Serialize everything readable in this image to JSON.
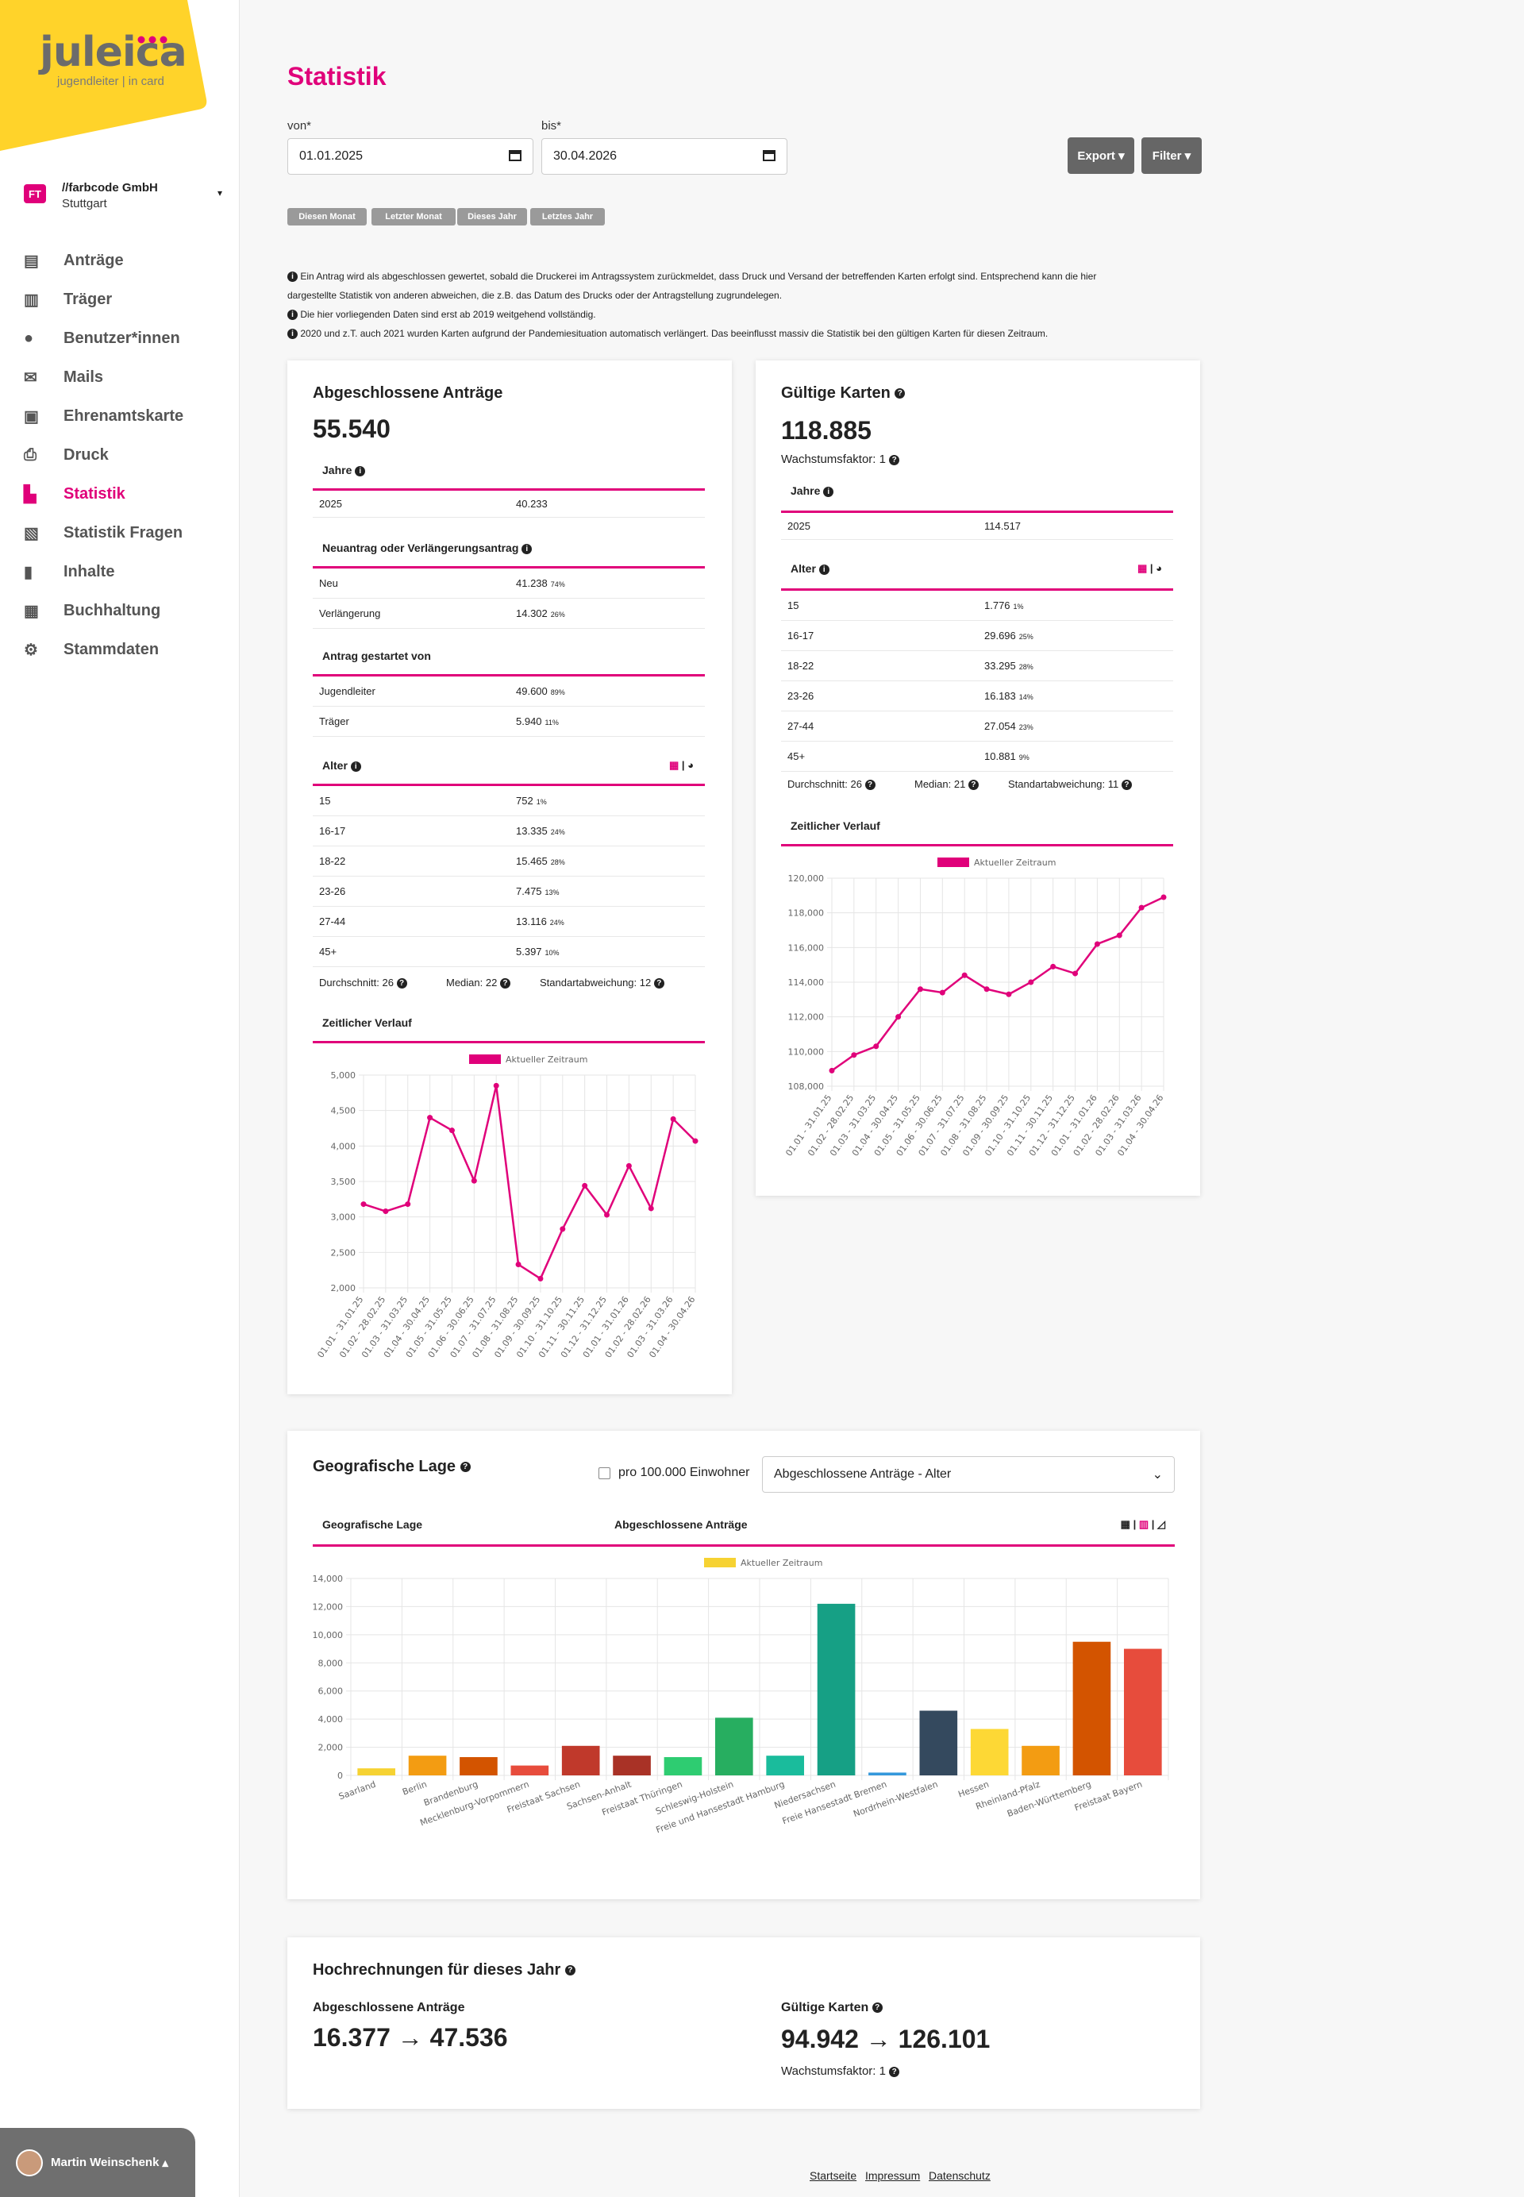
{
  "brand": {
    "name": "juleica",
    "tagline": "jugendleiter | in card"
  },
  "org": {
    "badge": "FT",
    "name": "//farbcode GmbH",
    "city": "Stuttgart"
  },
  "nav": [
    {
      "label": "Anträge",
      "icon": "id-card-icon"
    },
    {
      "label": "Träger",
      "icon": "building-icon"
    },
    {
      "label": "Benutzer*innen",
      "icon": "user-icon"
    },
    {
      "label": "Mails",
      "icon": "envelope-icon"
    },
    {
      "label": "Ehrenamtskarte",
      "icon": "card-icon"
    },
    {
      "label": "Druck",
      "icon": "printer-icon"
    },
    {
      "label": "Statistik",
      "icon": "chart-icon"
    },
    {
      "label": "Statistik Fragen",
      "icon": "clipboard-icon"
    },
    {
      "label": "Inhalte",
      "icon": "file-icon"
    },
    {
      "label": "Buchhaltung",
      "icon": "calculator-icon"
    },
    {
      "label": "Stammdaten",
      "icon": "gear-icon"
    }
  ],
  "user": {
    "name": "Martin Weinschenk"
  },
  "page": {
    "title": "Statistik",
    "from_label": "von*",
    "from_value": "01.01.2025",
    "to_label": "bis*",
    "to_value": "30.04.2026",
    "export": "Export",
    "filter": "Filter",
    "chips": [
      "Diesen Monat",
      "Letzter Monat",
      "Dieses Jahr",
      "Letztes Jahr"
    ],
    "notes": [
      "Ein Antrag wird als abgeschlossen gewertet, sobald die Druckerei im Antragssystem zurückmeldet, dass Druck und Versand der betreffenden Karten erfolgt sind. Entsprechend kann die hier",
      "dargestellte Statistik von anderen abweichen, die z.B. das Datum des Drucks oder der Antragstellung zugrundelegen.",
      "Die hier vorliegenden Daten sind erst ab 2019 weitgehend vollständig.",
      "2020 und z.T. auch 2021 wurden Karten aufgrund der Pandemiesituation automatisch verlängert. Das beeinflusst massiv die Statistik bei den gültigen Karten für diesen Zeitraum."
    ]
  },
  "applications": {
    "title": "Abgeschlossene Anträge",
    "total": "55.540",
    "years_head": "Jahre",
    "years": [
      {
        "k": "2025",
        "v": "40.233"
      }
    ],
    "type_head": "Neuantrag oder Verlängerungsantrag",
    "types": [
      {
        "k": "Neu",
        "v": "41.238",
        "p": "74%"
      },
      {
        "k": "Verlängerung",
        "v": "14.302",
        "p": "26%"
      }
    ],
    "start_head": "Antrag gestartet von",
    "starts": [
      {
        "k": "Jugendleiter",
        "v": "49.600",
        "p": "89%"
      },
      {
        "k": "Träger",
        "v": "5.940",
        "p": "11%"
      }
    ],
    "age_head": "Alter",
    "ages": [
      {
        "k": "15",
        "v": "752",
        "p": "1%"
      },
      {
        "k": "16-17",
        "v": "13.335",
        "p": "24%"
      },
      {
        "k": "18-22",
        "v": "15.465",
        "p": "28%"
      },
      {
        "k": "23-26",
        "v": "7.475",
        "p": "13%"
      },
      {
        "k": "27-44",
        "v": "13.116",
        "p": "24%"
      },
      {
        "k": "45+",
        "v": "5.397",
        "p": "10%"
      }
    ],
    "avg": "Durchschnitt: 26",
    "median": "Median: 22",
    "std": "Standartabweichung: 12",
    "timeline_head": "Zeitlicher Verlauf"
  },
  "cards": {
    "title": "Gültige Karten",
    "total": "118.885",
    "growth": "Wachstumsfaktor: 1",
    "years_head": "Jahre",
    "years": [
      {
        "k": "2025",
        "v": "114.517"
      }
    ],
    "age_head": "Alter",
    "ages": [
      {
        "k": "15",
        "v": "1.776",
        "p": "1%"
      },
      {
        "k": "16-17",
        "v": "29.696",
        "p": "25%"
      },
      {
        "k": "18-22",
        "v": "33.295",
        "p": "28%"
      },
      {
        "k": "23-26",
        "v": "16.183",
        "p": "14%"
      },
      {
        "k": "27-44",
        "v": "27.054",
        "p": "23%"
      },
      {
        "k": "45+",
        "v": "10.881",
        "p": "9%"
      }
    ],
    "avg": "Durchschnitt: 26",
    "median": "Median: 21",
    "std": "Standartabweichung: 11",
    "timeline_head": "Zeitlicher Verlauf"
  },
  "geo": {
    "title": "Geografische Lage",
    "per_capita": "pro 100.000 Einwohner",
    "select": "Abgeschlossene Anträge - Alter",
    "col1": "Geografische Lage",
    "col2": "Abgeschlossene Anträge"
  },
  "projection": {
    "title": "Hochrechnungen für dieses Jahr",
    "app_label": "Abgeschlossene Anträge",
    "app_value": "16.377 → 47.536",
    "card_label": "Gültige Karten",
    "card_value": "94.942 → 126.101",
    "card_growth": "Wachstumsfaktor: 1"
  },
  "footer": [
    "Startseite",
    "Impressum",
    "Datenschutz"
  ],
  "colors": {
    "accent": "#e0007a",
    "brand_yellow": "#ffd32a"
  },
  "chart_data": [
    {
      "type": "line",
      "legend": [
        "Aktueller Zeitraum"
      ],
      "categories": [
        "01.01 - 31.01.25",
        "01.02 - 28.02.25",
        "01.03 - 31.03.25",
        "01.04 - 30.04.25",
        "01.05 - 31.05.25",
        "01.06 - 30.06.25",
        "01.07 - 31.07.25",
        "01.08 - 31.08.25",
        "01.09 - 30.09.25",
        "01.10 - 31.10.25",
        "01.11 - 30.11.25",
        "01.12 - 31.12.25",
        "01.01 - 31.01.26",
        "01.02 - 28.02.26",
        "01.03 - 31.03.26",
        "01.04 - 30.04.26"
      ],
      "values": [
        3180,
        3080,
        3180,
        4400,
        4220,
        3510,
        4850,
        2330,
        2130,
        2830,
        3440,
        3030,
        3720,
        3120,
        4380,
        4070
      ],
      "ylim": [
        2000,
        5000
      ],
      "yticks": [
        2000,
        2500,
        3000,
        3500,
        4000,
        4500,
        5000
      ],
      "color": "#e0007a"
    },
    {
      "type": "line",
      "legend": [
        "Aktueller Zeitraum"
      ],
      "categories": [
        "01.01 - 31.01.25",
        "01.02 - 28.02.25",
        "01.03 - 31.03.25",
        "01.04 - 30.04.25",
        "01.05 - 31.05.25",
        "01.06 - 30.06.25",
        "01.07 - 31.07.25",
        "01.08 - 31.08.25",
        "01.09 - 30.09.25",
        "01.10 - 31.10.25",
        "01.11 - 30.11.25",
        "01.12 - 31.12.25",
        "01.01 - 31.01.26",
        "01.02 - 28.02.26",
        "01.03 - 31.03.26",
        "01.04 - 30.04.26"
      ],
      "values": [
        108900,
        109800,
        110300,
        112000,
        113600,
        113400,
        114400,
        113600,
        113300,
        114000,
        114900,
        114500,
        116200,
        116700,
        118300,
        118900
      ],
      "ylim": [
        108000,
        120000
      ],
      "yticks": [
        108000,
        110000,
        112000,
        114000,
        116000,
        118000,
        120000
      ],
      "color": "#e0007a"
    },
    {
      "type": "bar",
      "legend": [
        "Aktueller Zeitraum"
      ],
      "categories": [
        "Saarland",
        "Berlin",
        "Brandenburg",
        "Mecklenburg-Vorpommern",
        "Freistaat Sachsen",
        "Sachsen-Anhalt",
        "Freistaat Thüringen",
        "Schleswig-Holstein",
        "Freie und Hansestadt Hamburg",
        "Niedersachsen",
        "Freie Hansestadt Bremen",
        "Nordrhein-Westfalen",
        "Hessen",
        "Rheinland-Pfalz",
        "Baden-Württemberg",
        "Freistaat Bayern"
      ],
      "values": [
        500,
        1400,
        1300,
        700,
        2100,
        1400,
        1300,
        4100,
        1400,
        12200,
        200,
        4600,
        3300,
        2100,
        9500,
        9000
      ],
      "colors": [
        "#f6d232",
        "#f39c12",
        "#d35400",
        "#e74c3c",
        "#c0392b",
        "#a93226",
        "#2ecc71",
        "#27ae60",
        "#1abc9c",
        "#16a085",
        "#3498db",
        "#34495e",
        "#fdd835",
        "#f39c12",
        "#d35400",
        "#e74c3c"
      ],
      "ylim": [
        0,
        14000
      ],
      "yticks": [
        0,
        2000,
        4000,
        6000,
        8000,
        10000,
        12000,
        14000
      ]
    }
  ]
}
